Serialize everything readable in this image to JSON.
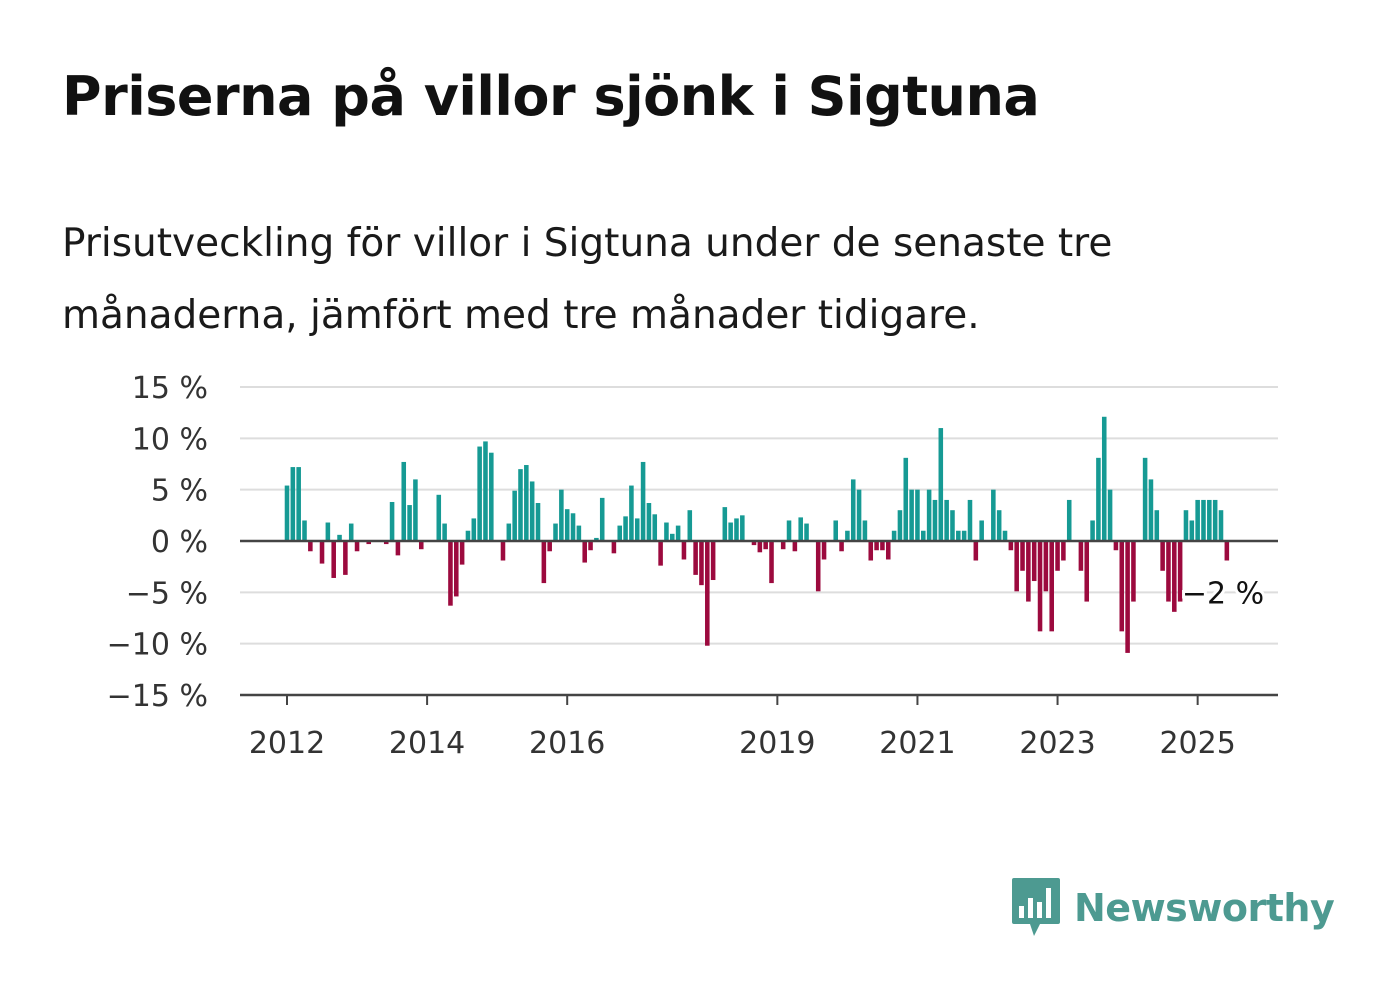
{
  "title": "Priserna på villor sjönk i Sigtuna",
  "subtitle": "Prisutveckling för villor i Sigtuna under de senaste tre månaderna, jämfört med tre månader tidigare.",
  "brand": {
    "name": "Newsworthy",
    "icon": "newsworthy-logo-icon",
    "color": "#4d9a91"
  },
  "colors": {
    "positive": "#169a94",
    "negative": "#9c0a3e",
    "grid": "#dddddd",
    "axis": "#444444"
  },
  "chart_data": {
    "type": "bar",
    "title": "",
    "xlabel": "",
    "ylabel": "",
    "ylim": [
      -15,
      15
    ],
    "yticks": [
      15,
      10,
      5,
      0,
      -5,
      -10,
      -15
    ],
    "ytick_labels": [
      "15 %",
      "10 %",
      "5 %",
      "0 %",
      "−5 %",
      "−10 %",
      "−15 %"
    ],
    "xticks": [
      "2012",
      "2014",
      "2016",
      "2019",
      "2021",
      "2023",
      "2025"
    ],
    "xstart": "2012-01",
    "grid": true,
    "end_label": "−2 %",
    "values": [
      5.4,
      7.2,
      7.2,
      2.0,
      -1.0,
      0.0,
      -2.2,
      1.8,
      -3.6,
      0.6,
      -3.3,
      1.7,
      -1.0,
      0.0,
      -0.3,
      0.0,
      0.0,
      -0.3,
      3.8,
      -1.4,
      7.7,
      3.5,
      6.0,
      -0.8,
      0.0,
      0.0,
      4.5,
      1.7,
      -6.3,
      -5.4,
      -2.3,
      1.0,
      2.2,
      9.2,
      9.7,
      8.6,
      0.0,
      -1.9,
      1.7,
      4.9,
      7.0,
      7.4,
      5.8,
      3.7,
      -4.1,
      -1.0,
      1.7,
      5.0,
      3.1,
      2.7,
      1.5,
      -2.1,
      -0.9,
      0.3,
      4.2,
      0.0,
      -1.2,
      1.5,
      2.4,
      5.4,
      2.2,
      7.7,
      3.7,
      2.6,
      -2.4,
      1.8,
      0.7,
      1.5,
      -1.8,
      3.0,
      -3.3,
      -4.3,
      -10.2,
      -3.8,
      0.0,
      3.3,
      1.8,
      2.2,
      2.5,
      0.0,
      -0.4,
      -1.1,
      -0.8,
      -4.1,
      0.0,
      -0.8,
      2.0,
      -1.0,
      2.3,
      1.7,
      0.0,
      -4.9,
      -1.8,
      0.0,
      2.0,
      -1.0,
      1.0,
      6.0,
      5.0,
      2.0,
      -1.9,
      -0.9,
      -0.9,
      -1.8,
      1.0,
      3.0,
      8.1,
      5.0,
      5.0,
      1.0,
      5.0,
      4.0,
      11.0,
      4.0,
      3.0,
      1.0,
      1.0,
      4.0,
      -1.9,
      2.0,
      0.0,
      5.0,
      3.0,
      1.0,
      -0.9,
      -4.9,
      -2.9,
      -5.9,
      -3.9,
      -8.8,
      -4.9,
      -8.8,
      -2.9,
      -1.9,
      4.0,
      0.0,
      -2.9,
      -5.9,
      2.0,
      8.1,
      12.1,
      5.0,
      -0.9,
      -8.8,
      -10.9,
      -5.9,
      0.0,
      8.1,
      6.0,
      3.0,
      -2.9,
      -5.9,
      -6.9,
      -5.9,
      3.0,
      2.0,
      4.0,
      4.0,
      4.0,
      4.0,
      3.0,
      -1.9
    ]
  }
}
